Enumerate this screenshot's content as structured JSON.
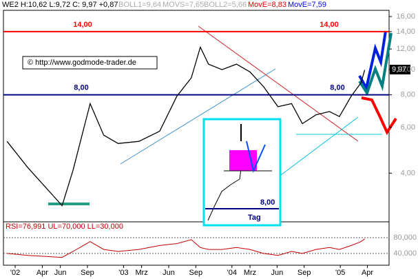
{
  "chart_data": {
    "type": "line",
    "header": {
      "symbol": "WE2 H:10,62 L:9,72 C: 9,97 +0,87",
      "boll1": "BOLL1=9,64",
      "movs": "MOVS=7,65",
      "boll2": "BOLL2=5,66",
      "move1": "MovE=8,83",
      "move2": "MovE=7,59"
    },
    "watermark": "© http://www.godmode-trader.de",
    "price_tag": "9,97",
    "log_y": true,
    "xlim": [
      -1.3,
      41.4
    ],
    "xticks": [
      {
        "value": 0,
        "label": "'02"
      },
      {
        "value": 3,
        "label": "Apr"
      },
      {
        "value": 5,
        "label": "Jun"
      },
      {
        "value": 8,
        "label": "Sep"
      },
      {
        "value": 12,
        "label": "'03"
      },
      {
        "value": 14,
        "label": "Mrz"
      },
      {
        "value": 17,
        "label": "Jun"
      },
      {
        "value": 20,
        "label": "Sep"
      },
      {
        "value": 24,
        "label": "'04"
      },
      {
        "value": 26,
        "label": "Mrz"
      },
      {
        "value": 29,
        "label": "Jun"
      },
      {
        "value": 32,
        "label": "Sep"
      },
      {
        "value": 36,
        "label": "'05"
      },
      {
        "value": 39,
        "label": "Apr"
      }
    ],
    "ylim": [
      2.6,
      16.9
    ],
    "yticks": [
      {
        "value": 4,
        "label": "4,00"
      },
      {
        "value": 6,
        "label": "6,00"
      },
      {
        "value": 8,
        "label": "8,00"
      },
      {
        "value": 10,
        "label": "10,00"
      },
      {
        "value": 12,
        "label": "12,00"
      },
      {
        "value": 14,
        "label": "14,00"
      },
      {
        "value": 16,
        "label": "16,00"
      }
    ],
    "x": [
      -0.9,
      1.4,
      5.2,
      6.4,
      8.3,
      9.8,
      11.4,
      13.7,
      16.0,
      17.9,
      19.5,
      20.5,
      21.4,
      22.9,
      24.5,
      26.0,
      27.5,
      29.1,
      30.6,
      31.8,
      33.3,
      34.8,
      35.9,
      37.2,
      38.3,
      38.7
    ],
    "series": [
      {
        "color": "#000000",
        "values": [
          5.3,
          4.2,
          3.0,
          4.1,
          7.4,
          5.6,
          5.2,
          5.3,
          5.8,
          7.9,
          9.3,
          12.2,
          10.5,
          10.0,
          10.5,
          9.8,
          8.6,
          7.2,
          7.4,
          6.2,
          6.7,
          6.9,
          6.6,
          7.9,
          8.9,
          9.97
        ]
      }
    ],
    "levels": [
      {
        "value": 14,
        "color": "#ff0000",
        "labels": [
          "14,00",
          "14,00"
        ]
      },
      {
        "value": 8,
        "color": "#000080",
        "labels": [
          "8,00",
          "8,00"
        ]
      }
    ],
    "inset": {
      "level_label": "8,00",
      "period": "Tag"
    },
    "rsi": {
      "title": "RSI=76,991 UL=70,000 LL=30,000",
      "color": "#c00000",
      "ylim": [
        10,
        115
      ],
      "yticks": [
        {
          "value": 80,
          "label": "80,000"
        },
        {
          "value": 40,
          "label": "40,000"
        }
      ],
      "values": [
        40,
        35,
        30,
        45,
        70,
        50,
        45,
        50,
        60,
        65,
        75,
        55,
        50,
        50,
        55,
        50,
        40,
        35,
        45,
        40,
        50,
        55,
        50,
        60,
        70,
        77
      ]
    }
  }
}
